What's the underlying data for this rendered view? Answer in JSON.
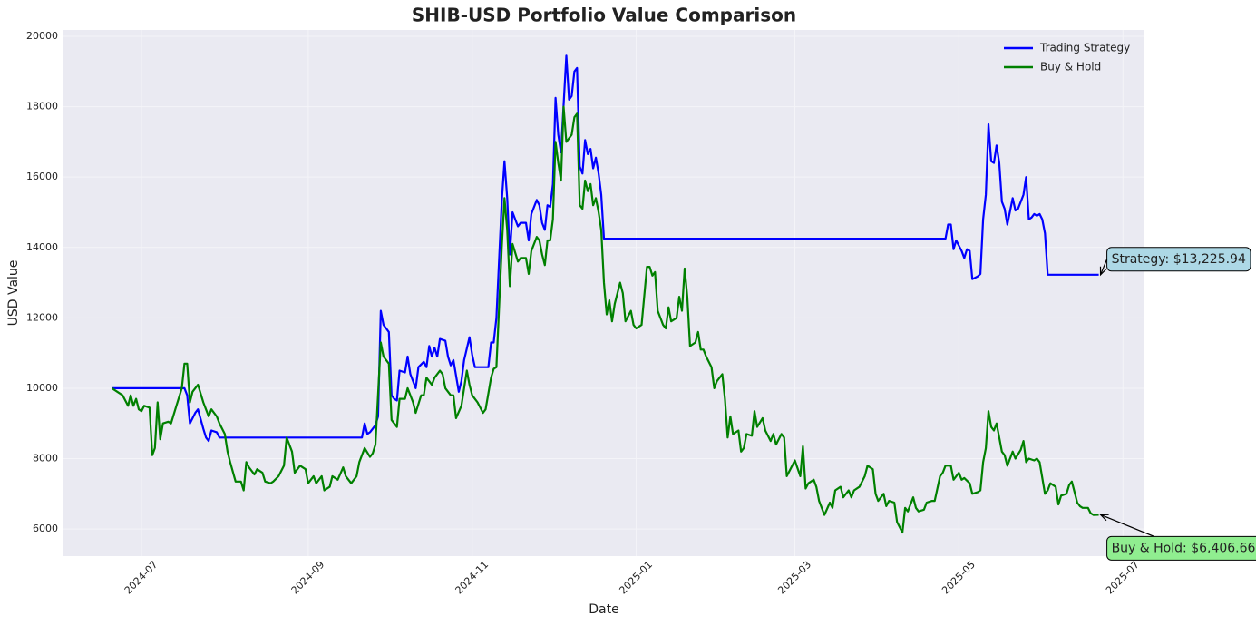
{
  "chart_data": {
    "type": "line",
    "title": "SHIB-USD Portfolio Value Comparison",
    "x_label": "Date",
    "y_label": "USD Value",
    "xlim": [
      -29,
      373
    ],
    "xticks": [
      {
        "value": 0,
        "label": "2024-07"
      },
      {
        "value": 62,
        "label": "2024-09"
      },
      {
        "value": 123,
        "label": "2024-11"
      },
      {
        "value": 184,
        "label": "2025-01"
      },
      {
        "value": 243,
        "label": "2025-03"
      },
      {
        "value": 304,
        "label": "2025-05"
      },
      {
        "value": 365,
        "label": "2025-07"
      }
    ],
    "ylim": [
      5230,
      20180
    ],
    "yticks": [
      6000,
      8000,
      10000,
      12000,
      14000,
      16000,
      18000,
      20000
    ],
    "grid": true,
    "legend": "upper right",
    "series": [
      {
        "name": "Trading Strategy",
        "color": "#0000ff",
        "x": [
          -11,
          16,
          17,
          18,
          20,
          21,
          23,
          24,
          25,
          26,
          28,
          29,
          82,
          83,
          84,
          85,
          87,
          88,
          89,
          90,
          92,
          93,
          94,
          95,
          96,
          98,
          99,
          100,
          101,
          102,
          103,
          105,
          106,
          107,
          108,
          109,
          110,
          111,
          113,
          114,
          115,
          116,
          118,
          119,
          120,
          122,
          123,
          124,
          129,
          130,
          131,
          132,
          134,
          135,
          136,
          137,
          138,
          140,
          141,
          143,
          144,
          145,
          147,
          148,
          149,
          150,
          151,
          152,
          153,
          154,
          155,
          156,
          158,
          159,
          160,
          161,
          162,
          163,
          164,
          165,
          166,
          167,
          168,
          169,
          170,
          171,
          172,
          299,
          300,
          301,
          302,
          303,
          305,
          306,
          307,
          308,
          309,
          311,
          312,
          313,
          314,
          315,
          316,
          317,
          318,
          319,
          320,
          321,
          322,
          324,
          325,
          326,
          328,
          329,
          330,
          331,
          332,
          333,
          334,
          335,
          336,
          337,
          356
        ],
        "values": [
          10000,
          10000,
          9800,
          9000,
          9300,
          9400,
          8850,
          8600,
          8500,
          8800,
          8750,
          8600,
          8600,
          9000,
          8700,
          8750,
          8950,
          9200,
          12200,
          11800,
          11600,
          9800,
          9700,
          9650,
          10500,
          10450,
          10900,
          10400,
          10200,
          10000,
          10600,
          10750,
          10600,
          11200,
          10900,
          11150,
          10900,
          11400,
          11350,
          10900,
          10650,
          10800,
          9900,
          10200,
          10800,
          11450,
          10950,
          10600,
          10600,
          11300,
          11300,
          12000,
          15300,
          16450,
          15400,
          13800,
          15000,
          14600,
          14700,
          14700,
          14200,
          14950,
          15350,
          15200,
          14700,
          14500,
          15200,
          15150,
          15800,
          18250,
          17200,
          16700,
          19450,
          18200,
          18300,
          19000,
          19100,
          16300,
          16100,
          17050,
          16650,
          16800,
          16250,
          16550,
          16100,
          15500,
          14250,
          14250,
          14650,
          14650,
          13950,
          14200,
          13900,
          13700,
          13950,
          13900,
          13100,
          13180,
          13250,
          14800,
          15500,
          17500,
          16450,
          16400,
          16900,
          16400,
          15300,
          15100,
          14650,
          15400,
          15050,
          15100,
          15500,
          16000,
          14800,
          14850,
          14950,
          14900,
          14950,
          14800,
          14400,
          13225.94,
          13225.94
        ]
      },
      {
        "name": "Buy & Hold",
        "color": "#008000",
        "x": [
          -11,
          -9,
          -7,
          -5,
          -4,
          -3,
          -2,
          -1,
          0,
          1,
          3,
          4,
          5,
          6,
          7,
          8,
          10,
          11,
          13,
          15,
          16,
          17,
          18,
          19,
          21,
          23,
          25,
          26,
          28,
          29,
          31,
          32,
          33,
          35,
          37,
          38,
          39,
          40,
          42,
          43,
          45,
          46,
          48,
          49,
          51,
          53,
          54,
          56,
          57,
          59,
          61,
          62,
          64,
          65,
          67,
          68,
          70,
          71,
          73,
          75,
          76,
          78,
          80,
          81,
          83,
          85,
          86,
          87,
          89,
          90,
          92,
          93,
          95,
          96,
          98,
          99,
          101,
          102,
          104,
          105,
          106,
          108,
          109,
          111,
          112,
          113,
          115,
          116,
          117,
          119,
          121,
          122,
          123,
          125,
          127,
          128,
          130,
          131,
          132,
          134,
          135,
          136,
          137,
          138,
          140,
          141,
          143,
          144,
          145,
          147,
          148,
          149,
          150,
          151,
          152,
          153,
          154,
          155,
          156,
          157,
          158,
          160,
          161,
          162,
          163,
          164,
          165,
          166,
          167,
          168,
          169,
          170,
          171,
          172,
          173,
          174,
          175,
          176,
          178,
          179,
          180,
          182,
          183,
          184,
          186,
          188,
          189,
          190,
          191,
          192,
          194,
          195,
          196,
          197,
          199,
          200,
          201,
          202,
          203,
          204,
          206,
          207,
          208,
          209,
          210,
          212,
          213,
          214,
          216,
          217,
          218,
          219,
          220,
          222,
          223,
          224,
          225,
          227,
          228,
          229,
          231,
          232,
          234,
          235,
          236,
          238,
          239,
          240,
          242,
          243,
          245,
          246,
          247,
          248,
          250,
          251,
          252,
          254,
          256,
          257,
          258,
          260,
          261,
          263,
          264,
          265,
          267,
          269,
          270,
          272,
          273,
          274,
          276,
          277,
          278,
          280,
          281,
          283,
          284,
          285,
          287,
          288,
          289,
          291,
          292,
          294,
          295,
          297,
          298,
          299,
          301,
          302,
          304,
          305,
          306,
          308,
          309,
          311,
          312,
          313,
          314,
          315,
          316,
          317,
          318,
          319,
          320,
          321,
          322,
          324,
          325,
          327,
          328,
          329,
          330,
          332,
          333,
          334,
          336,
          337,
          338,
          340,
          341,
          342,
          344,
          345,
          346,
          348,
          349,
          350,
          352,
          353,
          354,
          356
        ],
        "values": [
          10000,
          9900,
          9800,
          9500,
          9800,
          9500,
          9700,
          9400,
          9350,
          9500,
          9450,
          8100,
          8300,
          9600,
          8550,
          9000,
          9050,
          9000,
          9500,
          10000,
          10700,
          10700,
          9600,
          9900,
          10100,
          9600,
          9200,
          9400,
          9200,
          9000,
          8700,
          8200,
          7900,
          7350,
          7350,
          7100,
          7900,
          7750,
          7550,
          7700,
          7600,
          7350,
          7300,
          7350,
          7500,
          7800,
          8600,
          8200,
          7600,
          7800,
          7700,
          7300,
          7500,
          7300,
          7500,
          7100,
          7200,
          7500,
          7400,
          7750,
          7500,
          7300,
          7500,
          7900,
          8300,
          8050,
          8150,
          8400,
          11300,
          10900,
          10700,
          9100,
          8900,
          9700,
          9700,
          10000,
          9600,
          9300,
          9800,
          9800,
          10300,
          10100,
          10300,
          10500,
          10400,
          10000,
          9800,
          9800,
          9150,
          9500,
          10500,
          10100,
          9800,
          9600,
          9300,
          9400,
          10300,
          10550,
          10600,
          14000,
          15400,
          14500,
          12900,
          14100,
          13600,
          13700,
          13700,
          13250,
          13900,
          14300,
          14200,
          13800,
          13500,
          14200,
          14200,
          14800,
          17000,
          16400,
          15900,
          18000,
          17000,
          17200,
          17700,
          17800,
          15200,
          15100,
          15900,
          15600,
          15800,
          15200,
          15400,
          15000,
          14500,
          13000,
          12100,
          12500,
          11900,
          12400,
          13000,
          12700,
          11900,
          12200,
          11800,
          11700,
          11800,
          13450,
          13450,
          13200,
          13300,
          12200,
          11800,
          11700,
          12300,
          11900,
          12000,
          12600,
          12200,
          13400,
          12600,
          11200,
          11300,
          11600,
          11100,
          11100,
          10900,
          10600,
          10000,
          10200,
          10400,
          9700,
          8600,
          9200,
          8700,
          8800,
          8200,
          8300,
          8700,
          8650,
          9350,
          8900,
          9150,
          8800,
          8500,
          8700,
          8400,
          8700,
          8600,
          7500,
          7800,
          7950,
          7500,
          8350,
          7150,
          7300,
          7400,
          7200,
          6800,
          6400,
          6750,
          6600,
          7100,
          7200,
          6900,
          7100,
          6900,
          7100,
          7200,
          7500,
          7800,
          7700,
          7000,
          6800,
          7000,
          6650,
          6800,
          6750,
          6200,
          5900,
          6600,
          6500,
          6900,
          6600,
          6500,
          6550,
          6750,
          6800,
          6800,
          7500,
          7600,
          7800,
          7800,
          7400,
          7600,
          7400,
          7450,
          7300,
          7000,
          7050,
          7100,
          7900,
          8300,
          9350,
          8900,
          8800,
          9000,
          8600,
          8200,
          8100,
          7800,
          8200,
          8000,
          8250,
          8500,
          7900,
          8000,
          7950,
          8000,
          7900,
          7000,
          7100,
          7300,
          7200,
          6700,
          6950,
          7000,
          7250,
          7350,
          6750,
          6650,
          6600,
          6600,
          6450,
          6400,
          6406.66
        ]
      }
    ],
    "annotations": [
      {
        "text": "Strategy: $13,225.94",
        "color": "#add8e6"
      },
      {
        "text": "Buy & Hold: $6,406.66",
        "color": "#90ee90"
      }
    ]
  }
}
